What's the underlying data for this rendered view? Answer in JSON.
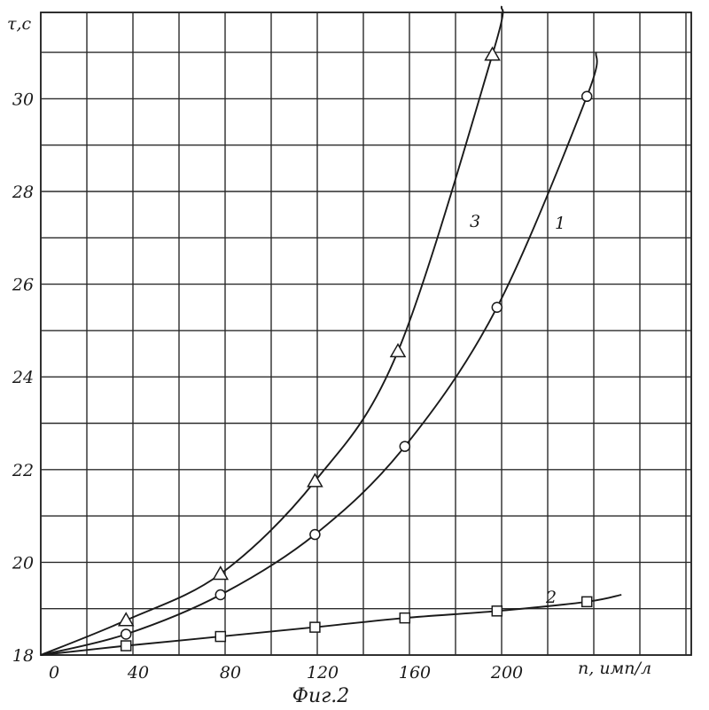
{
  "chart_data": {
    "type": "line",
    "title": "",
    "caption": "Фиг.2",
    "xlabel": "n, имп/л",
    "ylabel": "τ,c",
    "xlim": [
      0,
      240
    ],
    "ylim": [
      18,
      32
    ],
    "x_ticks": [
      0,
      40,
      80,
      120,
      160,
      200
    ],
    "y_ticks": [
      18,
      20,
      22,
      24,
      26,
      28,
      30
    ],
    "grid": true,
    "series": [
      {
        "name": "1",
        "marker": "circle",
        "x": [
          0,
          37,
          78,
          119,
          158,
          198,
          237
        ],
        "y": [
          18.0,
          18.45,
          19.3,
          20.6,
          22.5,
          25.5,
          30.05
        ]
      },
      {
        "name": "2",
        "marker": "square",
        "x": [
          0,
          37,
          78,
          119,
          158,
          198,
          237
        ],
        "y": [
          18.0,
          18.2,
          18.4,
          18.6,
          18.8,
          18.95,
          19.15
        ]
      },
      {
        "name": "3",
        "marker": "triangle",
        "x": [
          0,
          37,
          78,
          119,
          155,
          196
        ],
        "y": [
          18.0,
          18.75,
          19.75,
          21.75,
          24.55,
          30.95
        ]
      }
    ]
  }
}
